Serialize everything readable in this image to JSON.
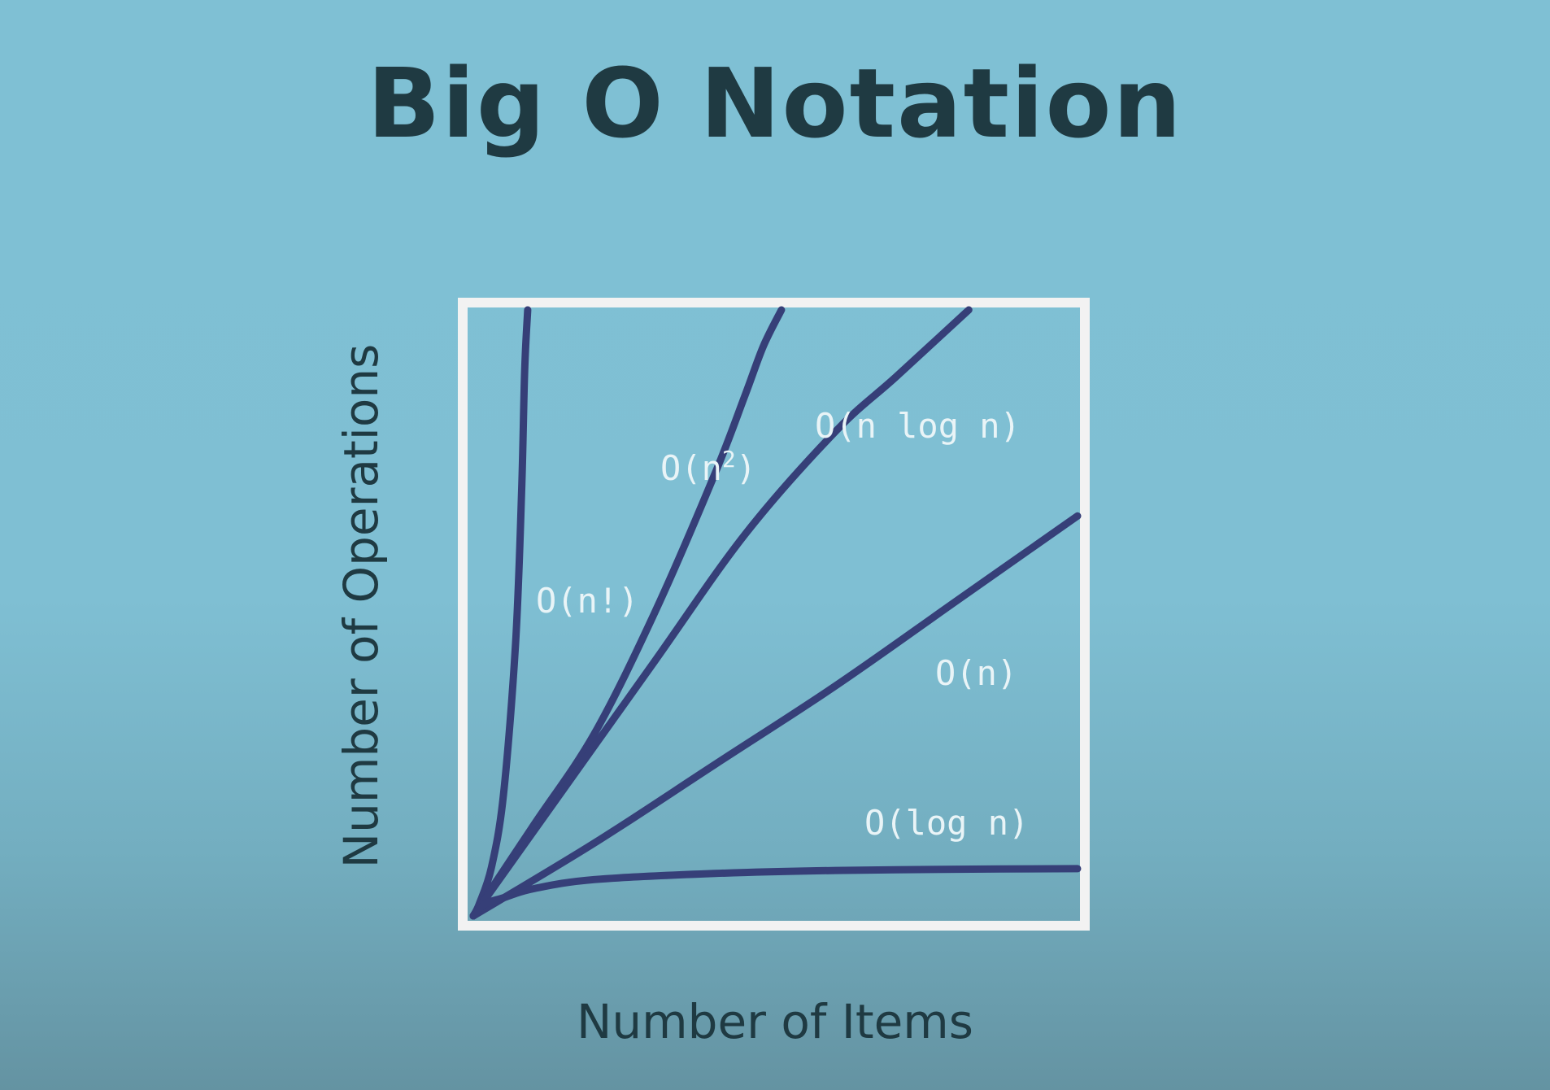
{
  "title": "Big O Notation",
  "chart_data": {
    "type": "line",
    "title": "Big O Notation",
    "xlabel": "Number of Items",
    "ylabel": "Number of Operations",
    "xlim": [
      0,
      1
    ],
    "ylim": [
      0,
      1
    ],
    "grid": false,
    "ticks": false,
    "line_color": "#363f78",
    "frame_color": "#f2f2f2",
    "series": [
      {
        "name": "O(n!)",
        "x": [
          0,
          0.01,
          0.03,
          0.05,
          0.07,
          0.08,
          0.085,
          0.09
        ],
        "y": [
          0,
          0.02,
          0.08,
          0.2,
          0.45,
          0.7,
          0.9,
          1.0
        ]
      },
      {
        "name": "O(n²)",
        "x": [
          0,
          0.1,
          0.2,
          0.3,
          0.4,
          0.45,
          0.48,
          0.51
        ],
        "y": [
          0,
          0.15,
          0.3,
          0.5,
          0.73,
          0.86,
          0.94,
          1.0
        ]
      },
      {
        "name": "O(n log n)",
        "x": [
          0,
          0.15,
          0.3,
          0.45,
          0.6,
          0.7,
          0.82
        ],
        "y": [
          0,
          0.21,
          0.42,
          0.63,
          0.8,
          0.89,
          1.0
        ]
      },
      {
        "name": "O(n)",
        "x": [
          0,
          0.2,
          0.4,
          0.6,
          0.8,
          1.0
        ],
        "y": [
          0,
          0.12,
          0.25,
          0.38,
          0.52,
          0.66
        ]
      },
      {
        "name": "O(log n)",
        "x": [
          0,
          0.02,
          0.05,
          0.1,
          0.2,
          0.4,
          0.6,
          0.8,
          1.0
        ],
        "y": [
          0,
          0.02,
          0.03,
          0.045,
          0.06,
          0.07,
          0.075,
          0.077,
          0.078
        ]
      }
    ],
    "labels": [
      {
        "text": "O(n!)",
        "series": "O(n!)"
      },
      {
        "text": "O(n",
        "sup": "2",
        "tail": ")",
        "series": "O(n²)"
      },
      {
        "text": "O(n log n)",
        "series": "O(n log n)"
      },
      {
        "text": "O(n)",
        "series": "O(n)"
      },
      {
        "text": "O(log n)",
        "series": "O(log n)"
      }
    ]
  }
}
